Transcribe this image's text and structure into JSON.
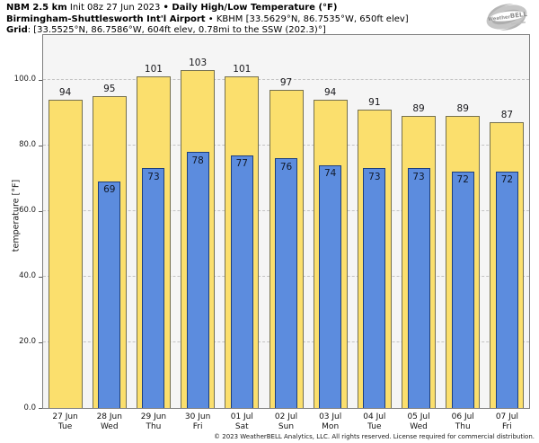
{
  "header": {
    "line1": {
      "model": "NBM 2.5 km",
      "init": " Init 08z 27 Jun 2023 ",
      "sep": "•",
      "product": " Daily High/Low Temperature (°F)"
    },
    "line2": {
      "station": "Birmingham-Shuttlesworth Int'l Airport",
      "sep": " • ",
      "meta": "KBHM [33.5629°N, 86.7535°W, 650ft elev]"
    },
    "line3": {
      "label": "Grid",
      "meta": ": [33.5525°N, 86.7586°W, 604ft elev, 0.78mi to the SSW (202.3)°]"
    }
  },
  "logo": {
    "brand_weather": "Weather",
    "brand_bell": "BELL"
  },
  "chart_data": {
    "type": "bar",
    "title": "Daily High/Low Temperature (°F)",
    "ylabel": "temperature [°F]",
    "xlabel": "",
    "ylim": [
      0,
      113.6
    ],
    "grid": "horizontal dashed at yticks, plot background #f5f5f5",
    "legend_position": "none",
    "categories": [
      {
        "date": "27 Jun",
        "day": "Tue"
      },
      {
        "date": "28 Jun",
        "day": "Wed"
      },
      {
        "date": "29 Jun",
        "day": "Thu"
      },
      {
        "date": "30 Jun",
        "day": "Fri"
      },
      {
        "date": "01 Jul",
        "day": "Sat"
      },
      {
        "date": "02 Jul",
        "day": "Sun"
      },
      {
        "date": "03 Jul",
        "day": "Mon"
      },
      {
        "date": "04 Jul",
        "day": "Tue"
      },
      {
        "date": "05 Jul",
        "day": "Wed"
      },
      {
        "date": "06 Jul",
        "day": "Thu"
      },
      {
        "date": "07 Jul",
        "day": "Fri"
      }
    ],
    "series": [
      {
        "name": "Daily High",
        "fill": "#fbdf6d",
        "border": "#75704e",
        "values": [
          94,
          95,
          101,
          103,
          101,
          97,
          94,
          91,
          89,
          89,
          87
        ]
      },
      {
        "name": "Daily Low",
        "fill": "#5c8cde",
        "border": "#1d3f7d",
        "values": [
          null,
          69,
          73,
          78,
          77,
          76,
          74,
          73,
          73,
          72,
          72
        ]
      }
    ],
    "yticks": [
      {
        "value": 0,
        "label": "0.0"
      },
      {
        "value": 20,
        "label": "20.0"
      },
      {
        "value": 40,
        "label": "40.0"
      },
      {
        "value": 60,
        "label": "60.0"
      },
      {
        "value": 80,
        "label": "80.0"
      },
      {
        "value": 100,
        "label": "100.0"
      }
    ]
  },
  "footer": {
    "copyright": "© 2023 WeatherBELL Analytics, LLC. All rights reserved. License required for commercial distribution."
  }
}
